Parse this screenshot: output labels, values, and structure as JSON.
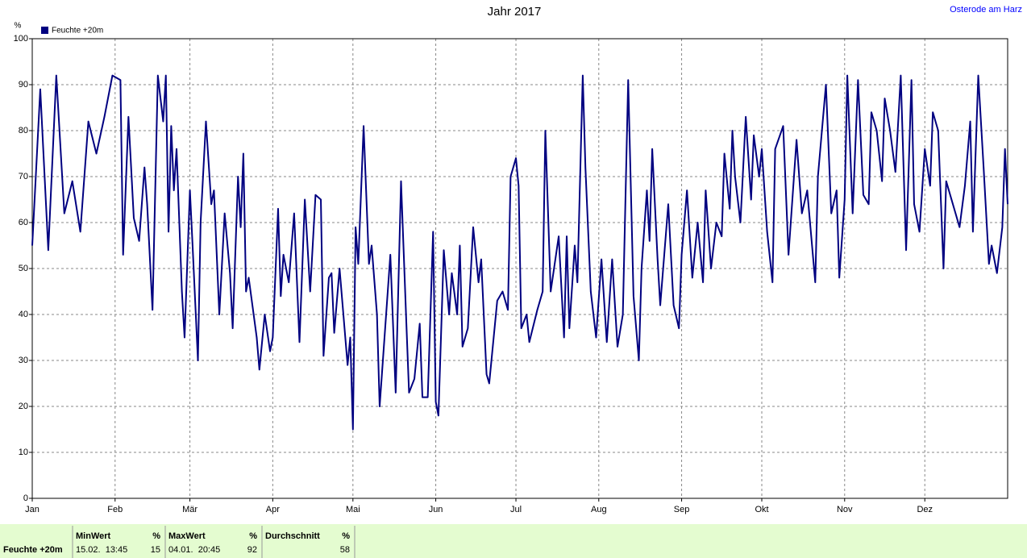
{
  "chart_data": {
    "type": "line",
    "title": "Jahr 2017",
    "station": "Osterode am Harz",
    "y_unit": "%",
    "series": [
      {
        "name": "Feuchte +20m",
        "color": "#000080",
        "x": [
          0,
          3,
          6,
          9,
          12,
          15,
          18,
          21,
          24,
          27,
          30,
          33,
          34,
          36,
          38,
          40,
          42,
          43,
          45,
          47,
          49,
          50,
          51,
          52,
          53,
          54,
          56,
          57,
          59,
          60,
          62,
          63,
          65,
          67,
          68,
          70,
          72,
          74,
          75,
          77,
          78,
          79,
          80,
          81,
          84,
          85,
          87,
          89,
          90,
          92,
          93,
          94,
          96,
          98,
          100,
          102,
          104,
          106,
          108,
          109,
          111,
          112,
          113,
          115,
          118,
          119,
          120,
          121,
          122,
          124,
          126,
          127,
          129,
          130,
          134,
          136,
          138,
          140,
          141,
          143,
          145,
          146,
          148,
          150,
          151,
          152,
          154,
          156,
          157,
          159,
          160,
          161,
          163,
          165,
          167,
          168,
          170,
          171,
          174,
          176,
          178,
          179,
          181,
          182,
          183,
          185,
          186,
          189,
          191,
          192,
          194,
          197,
          199,
          200,
          201,
          203,
          204,
          206,
          207,
          209,
          211,
          213,
          215,
          217,
          219,
          221,
          223,
          225,
          227,
          228,
          230,
          231,
          232,
          234,
          235,
          238,
          240,
          242,
          243,
          245,
          247,
          249,
          251,
          252,
          254,
          256,
          258,
          259,
          261,
          262,
          263,
          265,
          267,
          269,
          270,
          272,
          273,
          275,
          277,
          278,
          281,
          283,
          286,
          288,
          290,
          293,
          294,
          297,
          299,
          301,
          302,
          304,
          305,
          307,
          309,
          311,
          313,
          314,
          316,
          318,
          319,
          321,
          323,
          325,
          327,
          329,
          330,
          332,
          334,
          336,
          337,
          339,
          341,
          342,
          345,
          347,
          349,
          351,
          352,
          354,
          356,
          358,
          359,
          361,
          363,
          364,
          365
        ],
        "values": [
          55,
          89,
          54,
          92,
          62,
          69,
          58,
          82,
          75,
          83,
          92,
          91,
          53,
          83,
          61,
          56,
          72,
          64,
          41,
          92,
          82,
          92,
          58,
          81,
          67,
          76,
          45,
          35,
          67,
          55,
          30,
          60,
          82,
          64,
          67,
          40,
          62,
          49,
          37,
          70,
          59,
          75,
          45,
          48,
          35,
          28,
          40,
          32,
          35,
          63,
          44,
          53,
          47,
          62,
          34,
          65,
          45,
          66,
          65,
          31,
          48,
          49,
          36,
          50,
          29,
          35,
          15,
          59,
          51,
          81,
          51,
          55,
          40,
          20,
          53,
          23,
          69,
          38,
          23,
          26,
          38,
          22,
          22,
          58,
          21,
          18,
          54,
          40,
          49,
          40,
          55,
          33,
          37,
          59,
          47,
          52,
          27,
          25,
          43,
          45,
          41,
          70,
          74,
          68,
          37,
          40,
          34,
          41,
          45,
          80,
          45,
          57,
          35,
          57,
          37,
          55,
          47,
          92,
          72,
          45,
          35,
          52,
          34,
          52,
          33,
          40,
          91,
          44,
          30,
          50,
          67,
          56,
          76,
          52,
          42,
          64,
          42,
          37,
          53,
          67,
          48,
          60,
          47,
          67,
          50,
          60,
          57,
          75,
          63,
          80,
          70,
          60,
          83,
          65,
          79,
          70,
          76,
          58,
          47,
          76,
          81,
          53,
          78,
          62,
          67,
          47,
          70,
          90,
          62,
          67,
          48,
          65,
          92,
          62,
          91,
          66,
          64,
          84,
          80,
          69,
          87,
          80,
          71,
          92,
          54,
          91,
          64,
          58,
          76,
          68,
          84,
          80,
          50,
          69,
          63,
          59,
          68,
          82,
          58,
          92,
          72,
          51,
          55,
          49,
          59,
          76,
          64
        ]
      }
    ],
    "xlim": [
      0,
      365
    ],
    "xticks": [
      {
        "value": 0,
        "label": "Jan"
      },
      {
        "value": 31,
        "label": "Feb"
      },
      {
        "value": 59,
        "label": "Mär"
      },
      {
        "value": 90,
        "label": "Apr"
      },
      {
        "value": 120,
        "label": "Mai"
      },
      {
        "value": 151,
        "label": "Jun"
      },
      {
        "value": 181,
        "label": "Jul"
      },
      {
        "value": 212,
        "label": "Aug"
      },
      {
        "value": 243,
        "label": "Sep"
      },
      {
        "value": 273,
        "label": "Okt"
      },
      {
        "value": 304,
        "label": "Nov"
      },
      {
        "value": 334,
        "label": "Dez"
      }
    ],
    "ylim": [
      0,
      100
    ],
    "yticks": [
      0,
      10,
      20,
      30,
      40,
      50,
      60,
      70,
      80,
      90,
      100
    ],
    "grid": true
  },
  "stats": {
    "row_label": "Feuchte +20m",
    "columns": [
      {
        "header": "MinWert",
        "unit": "%",
        "time": "15.02.  13:45",
        "value": "15"
      },
      {
        "header": "MaxWert",
        "unit": "%",
        "time": "04.01.  20:45",
        "value": "92"
      },
      {
        "header": "Durchschnitt",
        "unit": "%",
        "value": "58"
      }
    ]
  }
}
